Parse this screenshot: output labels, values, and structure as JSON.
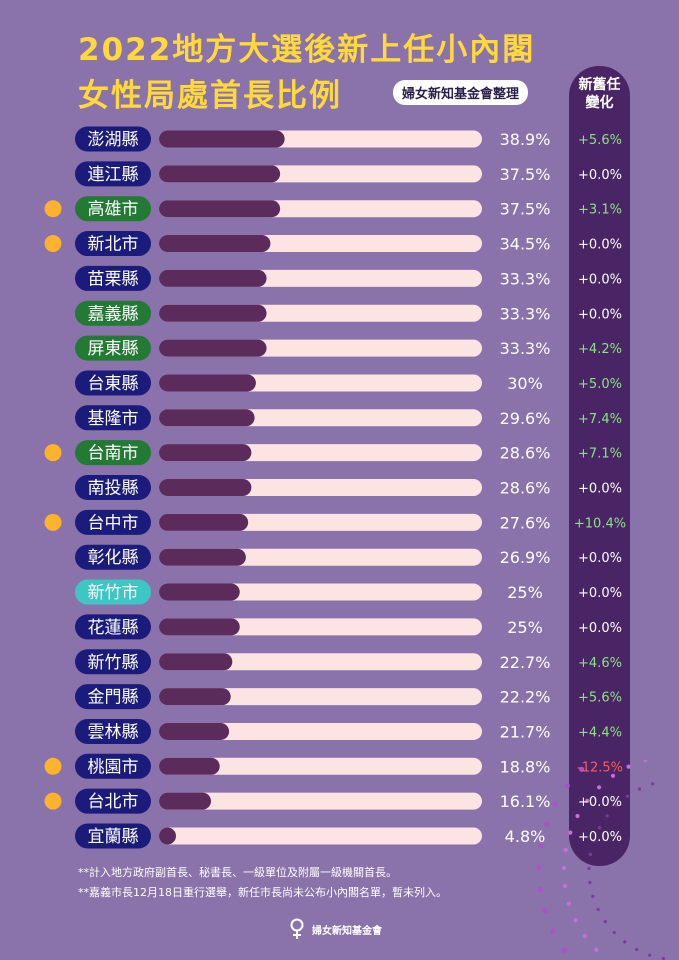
{
  "header": {
    "title_line1": "2022地方大選後新上任小內閣",
    "title_line2": "女性局處首長比例",
    "credit": "婦女新知基金會整理",
    "change_header": "新舊任\n變化"
  },
  "colors": {
    "background": "#8a72ab",
    "title": "#ffd93a",
    "party_kmt": "#1b1b7c",
    "party_dpp": "#237a34",
    "party_tpp": "#3ec6c4",
    "bar_track": "#fbe4e2",
    "bar_fill": "#5b2b5b",
    "change_positive": "#86e57f",
    "change_zero": "#ffffff",
    "change_negative": "#ff5a5a",
    "dot": "#ffb22c"
  },
  "chart_data": {
    "type": "bar",
    "orientation": "horizontal",
    "categories": [
      "澎湖縣",
      "連江縣",
      "高雄市",
      "新北市",
      "苗栗縣",
      "嘉義縣",
      "屏東縣",
      "台東縣",
      "基隆市",
      "台南市",
      "南投縣",
      "台中市",
      "彰化縣",
      "新竹市",
      "花蓮縣",
      "新竹縣",
      "金門縣",
      "雲林縣",
      "桃園市",
      "台北市",
      "宜蘭縣"
    ],
    "values": [
      38.9,
      37.5,
      37.5,
      34.5,
      33.3,
      33.3,
      33.3,
      30,
      29.6,
      28.6,
      28.6,
      27.6,
      26.9,
      25,
      25,
      22.7,
      22.2,
      21.7,
      18.8,
      16.1,
      4.8
    ],
    "value_labels": [
      "38.9%",
      "37.5%",
      "37.5%",
      "34.5%",
      "33.3%",
      "33.3%",
      "33.3%",
      "30%",
      "29.6%",
      "28.6%",
      "28.6%",
      "27.6%",
      "26.9%",
      "25%",
      "25%",
      "22.7%",
      "22.2%",
      "21.7%",
      "18.8%",
      "16.1%",
      "4.8%"
    ],
    "changes": [
      "+5.6%",
      "+0.0%",
      "+3.1%",
      "+0.0%",
      "+0.0%",
      "+0.0%",
      "+4.2%",
      "+5.0%",
      "+7.4%",
      "+7.1%",
      "+0.0%",
      "+10.4%",
      "+0.0%",
      "+0.0%",
      "+0.0%",
      "+4.6%",
      "+5.6%",
      "+4.4%",
      "-12.5%",
      "+0.0%",
      "+0.0%"
    ],
    "party": [
      "kmt",
      "kmt",
      "dpp",
      "kmt",
      "kmt",
      "dpp",
      "dpp",
      "kmt",
      "kmt",
      "dpp",
      "kmt",
      "kmt",
      "kmt",
      "tpp",
      "kmt",
      "kmt",
      "kmt",
      "kmt",
      "kmt",
      "kmt",
      "kmt"
    ],
    "dot": [
      false,
      false,
      true,
      true,
      false,
      false,
      false,
      false,
      false,
      true,
      false,
      true,
      false,
      false,
      false,
      false,
      false,
      false,
      true,
      true,
      false
    ],
    "xlim": [
      0,
      100
    ],
    "title": "",
    "xlabel": "",
    "ylabel": ""
  },
  "footnotes": [
    "**計入地方政府副首長、秘書長、一級單位及附屬一級機關首長。",
    "**嘉義市長12月18日重行選舉，新任市長尚未公布小內閣名單，暫未列入。"
  ],
  "logo": {
    "text": "婦女新知基金會",
    "icon": "female-symbol-icon"
  }
}
